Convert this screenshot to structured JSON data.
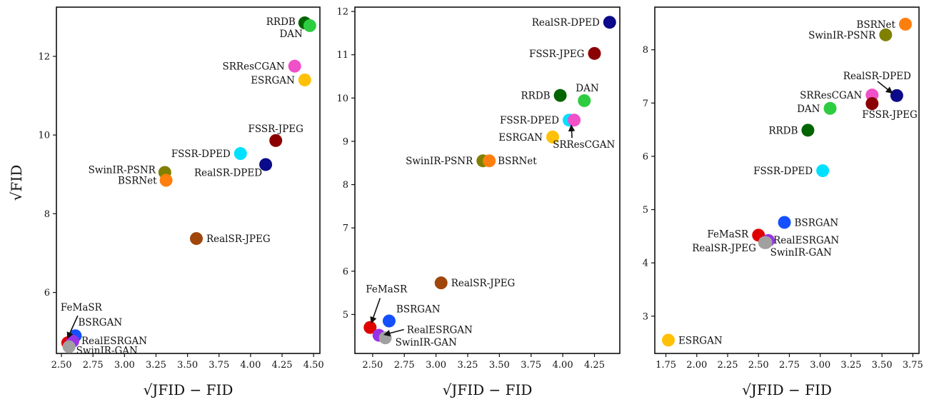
{
  "figure": {
    "ylabel_shared": "√FID",
    "xlabel_shared": "√JFID − FID"
  },
  "chart_data": [
    {
      "type": "scatter",
      "title": "",
      "xlabel": "√JFID − FID",
      "ylabel": "√FID",
      "xlim": [
        2.46,
        4.55
      ],
      "ylim": [
        4.45,
        13.25
      ],
      "xticks": [
        2.5,
        2.75,
        3.0,
        3.25,
        3.5,
        3.75,
        4.0,
        4.25,
        4.5
      ],
      "xtick_labels": [
        "2.50",
        "2.75",
        "3.00",
        "3.25",
        "3.50",
        "3.75",
        "4.00",
        "4.25",
        "4.50"
      ],
      "yticks": [
        6,
        8,
        10,
        12
      ],
      "ytick_labels": [
        "6",
        "8",
        "10",
        "12"
      ],
      "grid": false,
      "points": [
        {
          "name": "RRDB",
          "x": 4.43,
          "y": 12.85,
          "color": "#006400"
        },
        {
          "name": "DAN",
          "x": 4.47,
          "y": 12.78,
          "color": "#2ecc40"
        },
        {
          "name": "SRResCGAN",
          "x": 4.35,
          "y": 11.75,
          "color": "#f050c8"
        },
        {
          "name": "ESRGAN",
          "x": 4.43,
          "y": 11.4,
          "color": "#ffc107"
        },
        {
          "name": "FSSR-JPEG",
          "x": 4.2,
          "y": 9.86,
          "color": "#8b0000"
        },
        {
          "name": "FSSR-DPED",
          "x": 3.92,
          "y": 9.53,
          "color": "#00e0ff"
        },
        {
          "name": "RealSR-DPED",
          "x": 4.12,
          "y": 9.25,
          "color": "#0a0a8a"
        },
        {
          "name": "SwinIR-PSNR",
          "x": 3.32,
          "y": 9.05,
          "color": "#808000"
        },
        {
          "name": "BSRNet",
          "x": 3.33,
          "y": 8.85,
          "color": "#ff7f0e"
        },
        {
          "name": "RealSR-JPEG",
          "x": 3.57,
          "y": 7.37,
          "color": "#a0460a"
        },
        {
          "name": "FeMaSR",
          "x": 2.55,
          "y": 4.72,
          "color": "#e00000"
        },
        {
          "name": "BSRGAN",
          "x": 2.61,
          "y": 4.9,
          "color": "#1450ff"
        },
        {
          "name": "RealESRGAN",
          "x": 2.59,
          "y": 4.76,
          "color": "#9932e6"
        },
        {
          "name": "SwinIR-GAN",
          "x": 2.56,
          "y": 4.62,
          "color": "#a0a0a0"
        }
      ]
    },
    {
      "type": "scatter",
      "title": "",
      "xlabel": "√JFID − FID",
      "ylabel": "",
      "xlim": [
        2.36,
        4.45
      ],
      "ylim": [
        4.1,
        12.1
      ],
      "xticks": [
        2.5,
        2.75,
        3.0,
        3.25,
        3.5,
        3.75,
        4.0,
        4.25
      ],
      "xtick_labels": [
        "2.50",
        "2.75",
        "3.00",
        "3.25",
        "3.50",
        "3.75",
        "4.00",
        "4.25"
      ],
      "yticks": [
        5,
        6,
        7,
        8,
        9,
        10,
        11,
        12
      ],
      "ytick_labels": [
        "5",
        "6",
        "7",
        "8",
        "9",
        "10",
        "11",
        "12"
      ],
      "grid": false,
      "points": [
        {
          "name": "RealSR-DPED",
          "x": 4.37,
          "y": 11.75,
          "color": "#0a0a8a"
        },
        {
          "name": "FSSR-JPEG",
          "x": 4.25,
          "y": 11.03,
          "color": "#8b0000"
        },
        {
          "name": "RRDB",
          "x": 3.98,
          "y": 10.06,
          "color": "#006400"
        },
        {
          "name": "DAN",
          "x": 4.17,
          "y": 9.94,
          "color": "#2ecc40"
        },
        {
          "name": "FSSR-DPED",
          "x": 4.05,
          "y": 9.49,
          "color": "#00e0ff"
        },
        {
          "name": "SRResCGAN",
          "x": 4.09,
          "y": 9.49,
          "color": "#f050c8"
        },
        {
          "name": "ESRGAN",
          "x": 3.92,
          "y": 9.1,
          "color": "#ffc107"
        },
        {
          "name": "SwinIR-PSNR",
          "x": 3.37,
          "y": 8.55,
          "color": "#808000"
        },
        {
          "name": "BSRNet",
          "x": 3.42,
          "y": 8.55,
          "color": "#ff7f0e"
        },
        {
          "name": "RealSR-JPEG",
          "x": 3.04,
          "y": 5.73,
          "color": "#a0460a"
        },
        {
          "name": "FeMaSR",
          "x": 2.48,
          "y": 4.7,
          "color": "#e00000"
        },
        {
          "name": "BSRGAN",
          "x": 2.63,
          "y": 4.85,
          "color": "#1450ff"
        },
        {
          "name": "RealESRGAN",
          "x": 2.55,
          "y": 4.52,
          "color": "#9932e6"
        },
        {
          "name": "SwinIR-GAN",
          "x": 2.6,
          "y": 4.46,
          "color": "#a0a0a0"
        }
      ]
    },
    {
      "type": "scatter",
      "title": "",
      "xlabel": "√JFID − FID",
      "ylabel": "",
      "xlim": [
        1.66,
        3.8
      ],
      "ylim": [
        2.3,
        8.8
      ],
      "xticks": [
        1.75,
        2.0,
        2.25,
        2.5,
        2.75,
        3.0,
        3.25,
        3.5,
        3.75
      ],
      "xtick_labels": [
        "1.75",
        "2.00",
        "2.25",
        "2.50",
        "2.75",
        "3.00",
        "3.25",
        "3.50",
        "3.75"
      ],
      "yticks": [
        3,
        4,
        5,
        6,
        7,
        8
      ],
      "ytick_labels": [
        "3",
        "4",
        "5",
        "6",
        "7",
        "8"
      ],
      "grid": false,
      "points": [
        {
          "name": "BSRNet",
          "x": 3.69,
          "y": 8.48,
          "color": "#ff7f0e"
        },
        {
          "name": "SwinIR-PSNR",
          "x": 3.53,
          "y": 8.28,
          "color": "#808000"
        },
        {
          "name": "RealSR-DPED",
          "x": 3.62,
          "y": 7.14,
          "color": "#0a0a8a"
        },
        {
          "name": "SRResCGAN",
          "x": 3.42,
          "y": 7.15,
          "color": "#f050c8"
        },
        {
          "name": "FSSR-JPEG",
          "x": 3.42,
          "y": 6.99,
          "color": "#8b0000"
        },
        {
          "name": "DAN",
          "x": 3.08,
          "y": 6.9,
          "color": "#2ecc40"
        },
        {
          "name": "RRDB",
          "x": 2.9,
          "y": 6.49,
          "color": "#006400"
        },
        {
          "name": "FSSR-DPED",
          "x": 3.02,
          "y": 5.73,
          "color": "#00e0ff"
        },
        {
          "name": "BSRGAN",
          "x": 2.71,
          "y": 4.76,
          "color": "#1450ff"
        },
        {
          "name": "FeMaSR",
          "x": 2.5,
          "y": 4.52,
          "color": "#e00000"
        },
        {
          "name": "RealESRGAN",
          "x": 2.58,
          "y": 4.42,
          "color": "#9932e6"
        },
        {
          "name": "SwinIR-GAN",
          "x": 2.56,
          "y": 4.38,
          "color": "#a0a0a0"
        },
        {
          "name": "RealSR-JPEG",
          "x": 2.55,
          "y": 4.38,
          "color": "#a0a0a0"
        },
        {
          "name": "ESRGAN",
          "x": 1.77,
          "y": 2.55,
          "color": "#ffc107"
        }
      ]
    }
  ]
}
